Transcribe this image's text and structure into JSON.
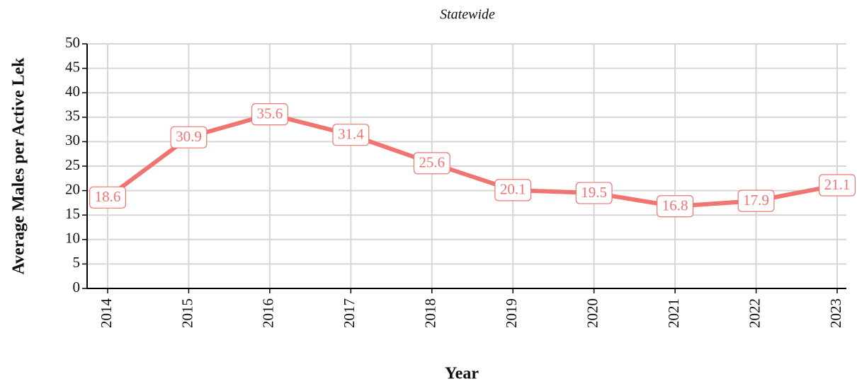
{
  "chart_data": {
    "type": "line",
    "title": "Statewide",
    "x_label": "Year",
    "y_label": "Average Males per Active Lek",
    "categories": [
      "2014",
      "2015",
      "2016",
      "2017",
      "2018",
      "2019",
      "2020",
      "2021",
      "2022",
      "2023"
    ],
    "series": [
      {
        "name": "Statewide",
        "color": "#f07470",
        "values": [
          18.6,
          30.9,
          35.6,
          31.4,
          25.6,
          20.1,
          19.5,
          16.8,
          17.9,
          21.1
        ]
      }
    ],
    "ylim": [
      0,
      50
    ],
    "yticks": [
      0,
      5,
      10,
      15,
      20,
      25,
      30,
      35,
      40,
      45,
      50
    ],
    "grid": true
  }
}
